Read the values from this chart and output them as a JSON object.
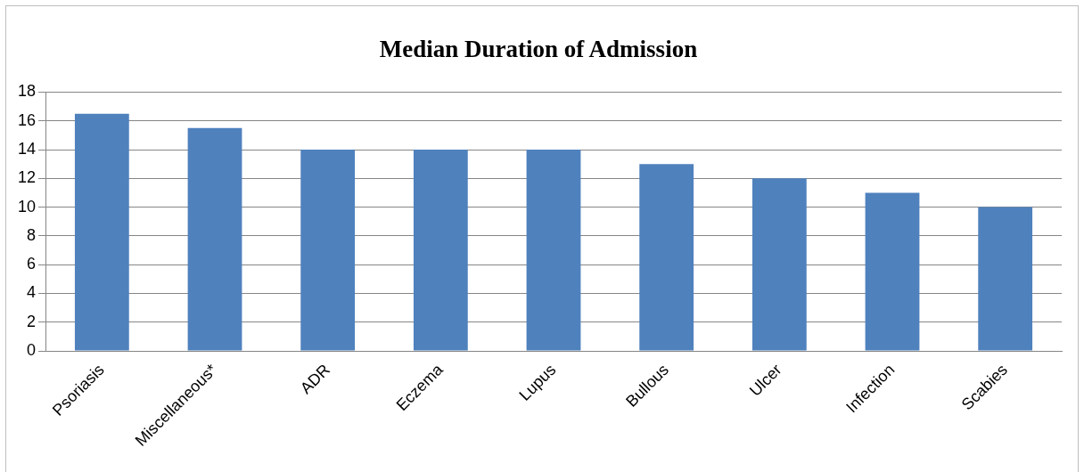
{
  "chart_data": {
    "type": "bar",
    "title": "Median Duration of Admission",
    "categories": [
      "Psoriasis",
      "Miscellaneous*",
      "ADR",
      "Eczema",
      "Lupus",
      "Bullous",
      "Ulcer",
      "Infection",
      "Scabies"
    ],
    "values": [
      16.5,
      15.5,
      14,
      14,
      14,
      13,
      12,
      11,
      10
    ],
    "color": "#4f81bd",
    "ylim": [
      0,
      18
    ],
    "yticks": [
      0,
      2,
      4,
      6,
      8,
      10,
      12,
      14,
      16,
      18
    ],
    "grid": "y"
  }
}
